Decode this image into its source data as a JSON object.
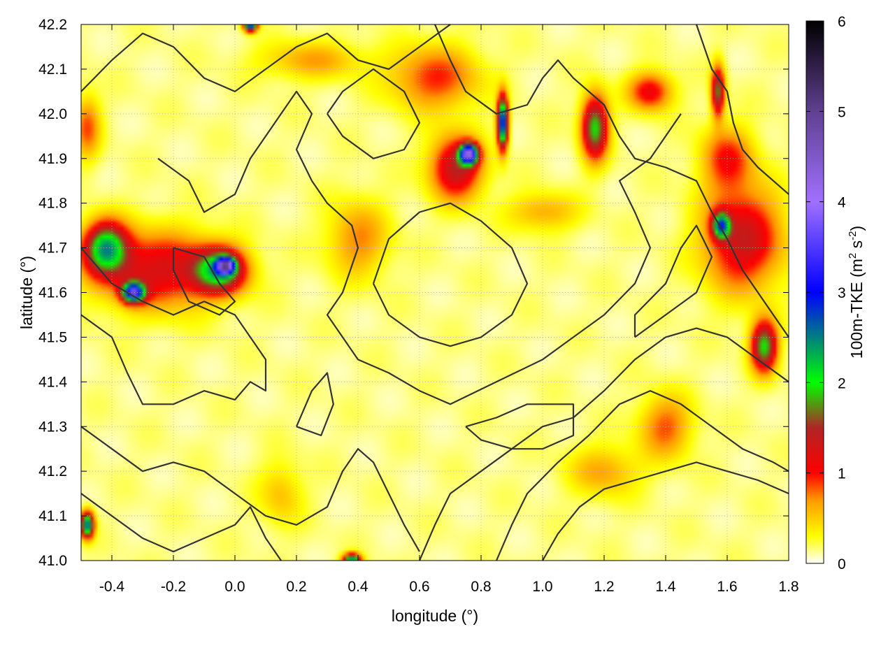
{
  "chart_data": {
    "type": "heatmap",
    "title": "",
    "xlabel": "longitude (°)",
    "ylabel": "latitude (°)",
    "xlim": [
      -0.5,
      1.8
    ],
    "ylim": [
      41.0,
      42.2
    ],
    "xticks": [
      "-0.4",
      "-0.2",
      "0.0",
      "0.2",
      "0.4",
      "0.6",
      "0.8",
      "1.0",
      "1.2",
      "1.4",
      "1.6",
      "1.8"
    ],
    "xtick_values": [
      -0.4,
      -0.2,
      0.0,
      0.2,
      0.4,
      0.6,
      0.8,
      1.0,
      1.2,
      1.4,
      1.6,
      1.8
    ],
    "yticks": [
      "41.0",
      "41.1",
      "41.2",
      "41.3",
      "41.4",
      "41.5",
      "41.6",
      "41.7",
      "41.8",
      "41.9",
      "42.0",
      "42.1",
      "42.2"
    ],
    "ytick_values": [
      41.0,
      41.1,
      41.2,
      41.3,
      41.4,
      41.5,
      41.6,
      41.7,
      41.8,
      41.9,
      42.0,
      42.1,
      42.2
    ],
    "grid": true,
    "colorbar": {
      "label_prefix": "100m-TKE (m",
      "label_sup1": "2",
      "label_mid": " s",
      "label_sup2": "-2",
      "label_suffix": ")",
      "range": [
        0,
        6
      ],
      "ticks": [
        "0",
        "1",
        "2",
        "3",
        "4",
        "5",
        "6"
      ],
      "tick_values": [
        0,
        1,
        2,
        3,
        4,
        5,
        6
      ],
      "colors": [
        {
          "v": 0.0,
          "c": "#ffffff"
        },
        {
          "v": 0.3,
          "c": "#ffff00"
        },
        {
          "v": 0.7,
          "c": "#ff9900"
        },
        {
          "v": 1.0,
          "c": "#ff0000"
        },
        {
          "v": 1.5,
          "c": "#b02525"
        },
        {
          "v": 2.0,
          "c": "#00ff00"
        },
        {
          "v": 3.0,
          "c": "#0000ff"
        },
        {
          "v": 4.0,
          "c": "#a070ff"
        },
        {
          "v": 5.0,
          "c": "#604090"
        },
        {
          "v": 6.0,
          "c": "#000000"
        }
      ]
    },
    "hotspots": [
      {
        "lon": -0.25,
        "lat": 41.65,
        "sx": 0.14,
        "sy": 0.06,
        "v": 1.1
      },
      {
        "lon": -0.42,
        "lat": 41.7,
        "sx": 0.05,
        "sy": 0.04,
        "v": 2.0
      },
      {
        "lon": -0.33,
        "lat": 41.6,
        "sx": 0.025,
        "sy": 0.015,
        "v": 3.0
      },
      {
        "lon": -0.05,
        "lat": 41.65,
        "sx": 0.06,
        "sy": 0.035,
        "v": 1.8
      },
      {
        "lon": -0.03,
        "lat": 41.66,
        "sx": 0.02,
        "sy": 0.012,
        "v": 3.2
      },
      {
        "lon": 0.72,
        "lat": 41.88,
        "sx": 0.06,
        "sy": 0.05,
        "v": 1.3
      },
      {
        "lon": 0.76,
        "lat": 41.91,
        "sx": 0.02,
        "sy": 0.015,
        "v": 3.5
      },
      {
        "lon": 0.87,
        "lat": 41.98,
        "sx": 0.012,
        "sy": 0.04,
        "v": 2.9
      },
      {
        "lon": 1.17,
        "lat": 41.97,
        "sx": 0.03,
        "sy": 0.05,
        "v": 1.8
      },
      {
        "lon": 1.35,
        "lat": 42.05,
        "sx": 0.05,
        "sy": 0.03,
        "v": 1.0
      },
      {
        "lon": 1.57,
        "lat": 42.05,
        "sx": 0.015,
        "sy": 0.04,
        "v": 1.6
      },
      {
        "lon": 1.65,
        "lat": 41.72,
        "sx": 0.09,
        "sy": 0.08,
        "v": 1.2
      },
      {
        "lon": 1.58,
        "lat": 41.75,
        "sx": 0.02,
        "sy": 0.02,
        "v": 2.0
      },
      {
        "lon": 1.72,
        "lat": 41.48,
        "sx": 0.03,
        "sy": 0.04,
        "v": 1.8
      },
      {
        "lon": 1.6,
        "lat": 41.9,
        "sx": 0.06,
        "sy": 0.05,
        "v": 0.8
      },
      {
        "lon": 0.4,
        "lat": 41.72,
        "sx": 0.07,
        "sy": 0.06,
        "v": 0.6
      },
      {
        "lon": 0.25,
        "lat": 42.12,
        "sx": 0.12,
        "sy": 0.03,
        "v": 0.5
      },
      {
        "lon": 0.65,
        "lat": 42.08,
        "sx": 0.1,
        "sy": 0.05,
        "v": 0.8
      },
      {
        "lon": -0.48,
        "lat": 41.97,
        "sx": 0.03,
        "sy": 0.05,
        "v": 0.7
      },
      {
        "lon": 1.4,
        "lat": 41.3,
        "sx": 0.06,
        "sy": 0.05,
        "v": 0.7
      },
      {
        "lon": 1.2,
        "lat": 41.2,
        "sx": 0.08,
        "sy": 0.04,
        "v": 0.5
      },
      {
        "lon": 0.15,
        "lat": 41.15,
        "sx": 0.05,
        "sy": 0.05,
        "v": 0.4
      },
      {
        "lon": -0.48,
        "lat": 41.08,
        "sx": 0.015,
        "sy": 0.02,
        "v": 2.5
      },
      {
        "lon": 0.38,
        "lat": 41.0,
        "sx": 0.02,
        "sy": 0.01,
        "v": 2.5
      },
      {
        "lon": 0.05,
        "lat": 42.2,
        "sx": 0.015,
        "sy": 0.01,
        "v": 3.0
      },
      {
        "lon": 1.0,
        "lat": 41.78,
        "sx": 0.08,
        "sy": 0.03,
        "v": 0.5
      }
    ],
    "contours": [
      [
        [
          -0.5,
          41.55
        ],
        [
          -0.4,
          41.5
        ],
        [
          -0.35,
          41.42
        ],
        [
          -0.3,
          41.35
        ],
        [
          -0.2,
          41.35
        ],
        [
          -0.1,
          41.38
        ],
        [
          0.0,
          41.36
        ],
        [
          0.05,
          41.4
        ],
        [
          0.1,
          41.38
        ],
        [
          0.1,
          41.45
        ],
        [
          0.05,
          41.5
        ],
        [
          0.0,
          41.55
        ],
        [
          -0.1,
          41.58
        ],
        [
          -0.2,
          41.55
        ],
        [
          -0.3,
          41.58
        ],
        [
          -0.4,
          41.62
        ],
        [
          -0.5,
          41.7
        ]
      ],
      [
        [
          -0.25,
          41.9
        ],
        [
          -0.15,
          41.85
        ],
        [
          -0.1,
          41.78
        ],
        [
          0.0,
          41.82
        ],
        [
          0.05,
          41.9
        ],
        [
          0.1,
          41.95
        ],
        [
          0.15,
          42.0
        ],
        [
          0.2,
          42.05
        ],
        [
          0.25,
          42.0
        ],
        [
          0.2,
          41.92
        ],
        [
          0.25,
          41.85
        ],
        [
          0.3,
          41.8
        ],
        [
          0.38,
          41.75
        ],
        [
          0.4,
          41.7
        ],
        [
          0.35,
          41.6
        ],
        [
          0.3,
          41.55
        ],
        [
          0.35,
          41.5
        ],
        [
          0.4,
          41.45
        ],
        [
          0.5,
          41.42
        ],
        [
          0.6,
          41.38
        ],
        [
          0.7,
          41.35
        ],
        [
          0.85,
          41.4
        ],
        [
          1.0,
          41.45
        ],
        [
          1.1,
          41.5
        ],
        [
          1.2,
          41.55
        ],
        [
          1.3,
          41.62
        ],
        [
          1.35,
          41.7
        ],
        [
          1.3,
          41.78
        ],
        [
          1.25,
          41.85
        ],
        [
          1.35,
          41.9
        ],
        [
          1.45,
          42.0
        ]
      ],
      [
        [
          0.45,
          41.62
        ],
        [
          0.5,
          41.72
        ],
        [
          0.6,
          41.78
        ],
        [
          0.7,
          41.8
        ],
        [
          0.8,
          41.76
        ],
        [
          0.9,
          41.7
        ],
        [
          0.95,
          41.62
        ],
        [
          0.9,
          41.55
        ],
        [
          0.8,
          41.5
        ],
        [
          0.7,
          41.48
        ],
        [
          0.6,
          41.5
        ],
        [
          0.5,
          41.55
        ],
        [
          0.45,
          41.62
        ]
      ],
      [
        [
          -0.5,
          42.05
        ],
        [
          -0.4,
          42.12
        ],
        [
          -0.3,
          42.18
        ],
        [
          -0.2,
          42.15
        ],
        [
          -0.1,
          42.08
        ],
        [
          0.0,
          42.05
        ],
        [
          0.1,
          42.1
        ],
        [
          0.2,
          42.15
        ],
        [
          0.3,
          42.18
        ],
        [
          0.4,
          42.12
        ],
        [
          0.5,
          42.1
        ],
        [
          0.6,
          42.15
        ],
        [
          0.7,
          42.2
        ]
      ],
      [
        [
          0.6,
          41.0
        ],
        [
          0.65,
          41.08
        ],
        [
          0.7,
          41.15
        ],
        [
          0.8,
          41.2
        ],
        [
          0.9,
          41.25
        ],
        [
          1.0,
          41.3
        ],
        [
          1.1,
          41.32
        ],
        [
          1.2,
          41.38
        ],
        [
          1.3,
          41.45
        ],
        [
          1.4,
          41.5
        ],
        [
          1.5,
          41.52
        ],
        [
          1.6,
          41.5
        ],
        [
          1.7,
          41.45
        ],
        [
          1.8,
          41.4
        ]
      ],
      [
        [
          0.85,
          41.0
        ],
        [
          0.9,
          41.08
        ],
        [
          0.95,
          41.15
        ],
        [
          1.05,
          41.22
        ],
        [
          1.15,
          41.28
        ],
        [
          1.25,
          41.35
        ],
        [
          1.35,
          41.38
        ],
        [
          1.45,
          41.35
        ],
        [
          1.55,
          41.3
        ],
        [
          1.65,
          41.25
        ],
        [
          1.75,
          41.22
        ],
        [
          1.8,
          41.2
        ]
      ],
      [
        [
          1.0,
          41.0
        ],
        [
          1.05,
          41.06
        ],
        [
          1.12,
          41.12
        ],
        [
          1.2,
          41.16
        ],
        [
          1.3,
          41.18
        ],
        [
          1.4,
          41.2
        ],
        [
          1.5,
          41.22
        ],
        [
          1.6,
          41.2
        ],
        [
          1.7,
          41.18
        ],
        [
          1.8,
          41.15
        ]
      ],
      [
        [
          -0.5,
          41.3
        ],
        [
          -0.4,
          41.25
        ],
        [
          -0.3,
          41.2
        ],
        [
          -0.2,
          41.22
        ],
        [
          -0.1,
          41.2
        ],
        [
          0.0,
          41.15
        ],
        [
          0.1,
          41.1
        ],
        [
          0.2,
          41.08
        ],
        [
          0.3,
          41.12
        ],
        [
          0.35,
          41.2
        ],
        [
          0.4,
          41.25
        ],
        [
          0.45,
          41.22
        ],
        [
          0.5,
          41.15
        ],
        [
          0.55,
          41.08
        ],
        [
          0.6,
          41.02
        ]
      ],
      [
        [
          -0.5,
          41.15
        ],
        [
          -0.4,
          41.1
        ],
        [
          -0.3,
          41.05
        ],
        [
          -0.2,
          41.02
        ],
        [
          -0.1,
          41.05
        ],
        [
          0.0,
          41.08
        ],
        [
          0.05,
          41.12
        ],
        [
          0.1,
          41.05
        ],
        [
          0.15,
          41.0
        ]
      ],
      [
        [
          0.65,
          42.2
        ],
        [
          0.7,
          42.12
        ],
        [
          0.75,
          42.05
        ],
        [
          0.85,
          42.0
        ],
        [
          0.95,
          42.02
        ],
        [
          1.0,
          42.08
        ],
        [
          1.05,
          42.12
        ],
        [
          1.1,
          42.08
        ],
        [
          1.2,
          42.02
        ],
        [
          1.25,
          41.95
        ],
        [
          1.3,
          41.9
        ],
        [
          1.4,
          41.88
        ],
        [
          1.5,
          41.85
        ],
        [
          1.55,
          41.78
        ],
        [
          1.6,
          41.72
        ],
        [
          1.65,
          41.65
        ],
        [
          1.7,
          41.6
        ],
        [
          1.75,
          41.55
        ],
        [
          1.8,
          41.5
        ]
      ],
      [
        [
          1.5,
          42.2
        ],
        [
          1.55,
          42.1
        ],
        [
          1.6,
          42.05
        ],
        [
          1.62,
          41.98
        ],
        [
          1.65,
          41.92
        ],
        [
          1.7,
          41.88
        ],
        [
          1.75,
          41.85
        ],
        [
          1.8,
          41.82
        ]
      ],
      [
        [
          -0.2,
          41.7
        ],
        [
          -0.1,
          41.68
        ],
        [
          -0.05,
          41.62
        ],
        [
          0.0,
          41.58
        ],
        [
          -0.05,
          41.55
        ],
        [
          -0.15,
          41.58
        ],
        [
          -0.2,
          41.65
        ],
        [
          -0.2,
          41.7
        ]
      ],
      [
        [
          0.2,
          41.3
        ],
        [
          0.25,
          41.38
        ],
        [
          0.3,
          41.42
        ],
        [
          0.32,
          41.35
        ],
        [
          0.28,
          41.28
        ],
        [
          0.2,
          41.3
        ]
      ],
      [
        [
          0.75,
          41.3
        ],
        [
          0.85,
          41.32
        ],
        [
          0.95,
          41.35
        ],
        [
          1.1,
          41.35
        ],
        [
          1.1,
          41.28
        ],
        [
          1.0,
          41.25
        ],
        [
          0.9,
          41.25
        ],
        [
          0.8,
          41.27
        ],
        [
          0.75,
          41.3
        ]
      ],
      [
        [
          1.3,
          41.5
        ],
        [
          1.4,
          41.55
        ],
        [
          1.5,
          41.6
        ],
        [
          1.55,
          41.68
        ],
        [
          1.5,
          41.75
        ],
        [
          1.45,
          41.7
        ],
        [
          1.4,
          41.62
        ],
        [
          1.3,
          41.55
        ],
        [
          1.3,
          41.5
        ]
      ],
      [
        [
          0.3,
          42.0
        ],
        [
          0.35,
          42.05
        ],
        [
          0.45,
          42.1
        ],
        [
          0.55,
          42.05
        ],
        [
          0.6,
          41.98
        ],
        [
          0.55,
          41.92
        ],
        [
          0.45,
          41.9
        ],
        [
          0.35,
          41.95
        ],
        [
          0.3,
          42.0
        ]
      ]
    ]
  }
}
